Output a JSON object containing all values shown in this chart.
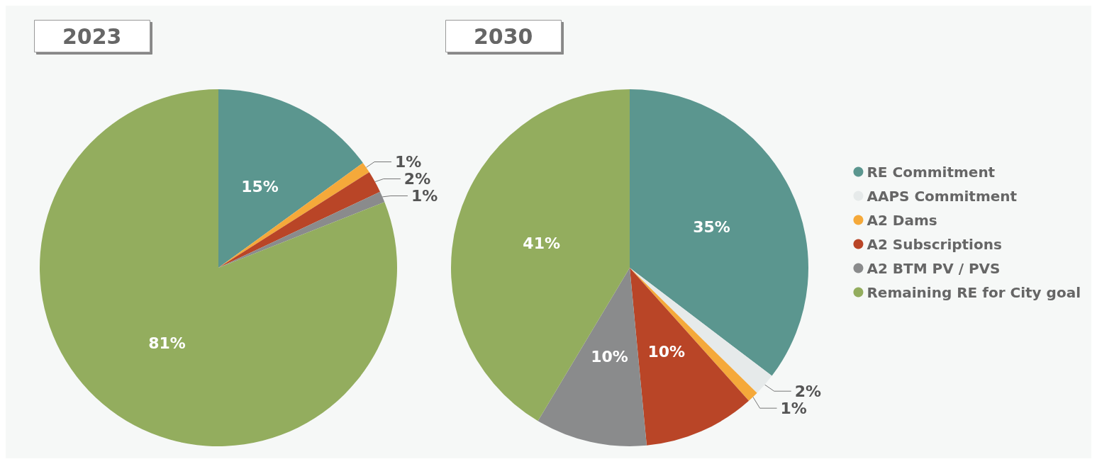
{
  "chart_data": {
    "type": "pie",
    "categories": [
      "RE Commitment",
      "AAPS Commitment",
      "A2 Dams",
      "A2 Subscriptions",
      "A2 BTM PV / PVS",
      "Remaining RE for City goal"
    ],
    "colors": [
      "#5b968f",
      "#e6eaea",
      "#f5a93a",
      "#b94527",
      "#8a8b8c",
      "#93ad5e"
    ],
    "legend": "right",
    "series": [
      {
        "name": "2023",
        "values": [
          15,
          0,
          1,
          2,
          1,
          81
        ],
        "value_labels": [
          "15%",
          null,
          "1%",
          "2%",
          "1%",
          "81%"
        ]
      },
      {
        "name": "2030",
        "values": [
          35,
          2,
          1,
          10,
          10,
          41
        ],
        "value_labels": [
          "35%",
          "2%",
          "1%",
          "10%",
          "10%",
          "41%"
        ]
      }
    ]
  }
}
